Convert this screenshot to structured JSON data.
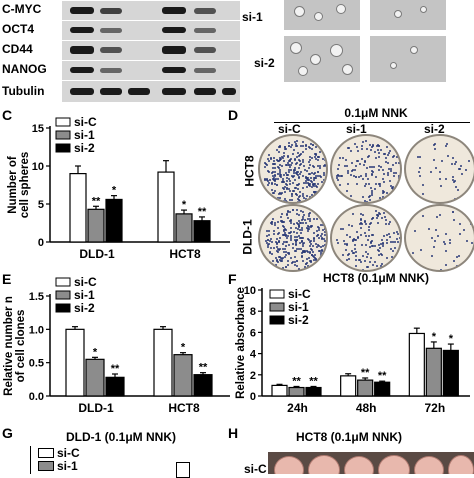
{
  "panels": {
    "C": "C",
    "D": "D",
    "E": "E",
    "F": "F",
    "G": "G",
    "H": "H"
  },
  "colors": {
    "si_C": "#ffffff",
    "si_1": "#8c8c8c",
    "si_2": "#000000",
    "plate_bg": "#efe8dc",
    "colony": "#2b3a78",
    "tumor": "#e8b8ad"
  },
  "panel_A": {
    "labels": [
      "C-MYC",
      "OCT4",
      "CD44",
      "NANOG",
      "Tubulin"
    ]
  },
  "panel_B": {
    "row_labels": [
      "si-1",
      "si-2"
    ]
  },
  "panel_D": {
    "title": "0.1μM NNK",
    "columns": [
      "si-C",
      "si-1",
      "si-2"
    ],
    "rows": [
      "HCT8",
      "DLD-1"
    ]
  },
  "panel_G": {
    "title": "DLD-1 (0.1μM NNK)",
    "legend": [
      "si-C",
      "si-1"
    ]
  },
  "panel_H": {
    "title": "HCT8 (0.1μM NNK)",
    "row_label": "si-C"
  },
  "chart_data": [
    {
      "panel": "C",
      "type": "bar",
      "ylabel_lines": [
        "Number of",
        "cell spheres"
      ],
      "ylim": [
        0,
        15
      ],
      "yticks": [
        "0",
        "5",
        "10",
        "15"
      ],
      "categories": [
        "DLD-1",
        "HCT8"
      ],
      "series": [
        {
          "name": "si-C",
          "values": [
            9.0,
            9.2
          ],
          "errors": [
            1.0,
            1.5
          ]
        },
        {
          "name": "si-1",
          "values": [
            4.3,
            3.7
          ],
          "errors": [
            0.4,
            0.5
          ]
        },
        {
          "name": "si-2",
          "values": [
            5.6,
            2.8
          ],
          "errors": [
            0.5,
            0.5
          ]
        }
      ],
      "sig": [
        [
          "",
          "**",
          "*"
        ],
        [
          "",
          "*",
          "**"
        ]
      ],
      "legend": "top-left"
    },
    {
      "panel": "E",
      "type": "bar",
      "ylabel_lines": [
        "Relative number n",
        "of cell clones"
      ],
      "ylim": [
        0,
        1.5
      ],
      "yticks": [
        "0.0",
        "0.5",
        "1.0",
        "1.5"
      ],
      "categories": [
        "DLD-1",
        "HCT8"
      ],
      "series": [
        {
          "name": "si-C",
          "values": [
            1.0,
            1.0
          ],
          "errors": [
            0.04,
            0.04
          ]
        },
        {
          "name": "si-1",
          "values": [
            0.55,
            0.62
          ],
          "errors": [
            0.03,
            0.03
          ]
        },
        {
          "name": "si-2",
          "values": [
            0.28,
            0.32
          ],
          "errors": [
            0.05,
            0.03
          ]
        }
      ],
      "sig": [
        [
          "",
          "*",
          "**"
        ],
        [
          "",
          "*",
          "**"
        ]
      ],
      "legend": "top-left"
    },
    {
      "panel": "F",
      "type": "bar",
      "title": "HCT8 (0.1μM NNK)",
      "ylabel_lines": [
        "Relative absorbance"
      ],
      "ylim": [
        0,
        10
      ],
      "yticks": [
        "0",
        "2",
        "4",
        "6",
        "8",
        "10"
      ],
      "categories": [
        "24h",
        "48h",
        "72h"
      ],
      "series": [
        {
          "name": "si-C",
          "values": [
            1.0,
            1.9,
            5.9
          ],
          "errors": [
            0.1,
            0.2,
            0.5
          ]
        },
        {
          "name": "si-1",
          "values": [
            0.8,
            1.5,
            4.5
          ],
          "errors": [
            0.1,
            0.2,
            0.6
          ]
        },
        {
          "name": "si-2",
          "values": [
            0.8,
            1.3,
            4.3
          ],
          "errors": [
            0.1,
            0.1,
            0.6
          ]
        }
      ],
      "sig": [
        [
          "",
          "**",
          "**"
        ],
        [
          "",
          "**",
          "**"
        ],
        [
          "",
          "*",
          "*"
        ]
      ],
      "legend": "top-left"
    }
  ]
}
